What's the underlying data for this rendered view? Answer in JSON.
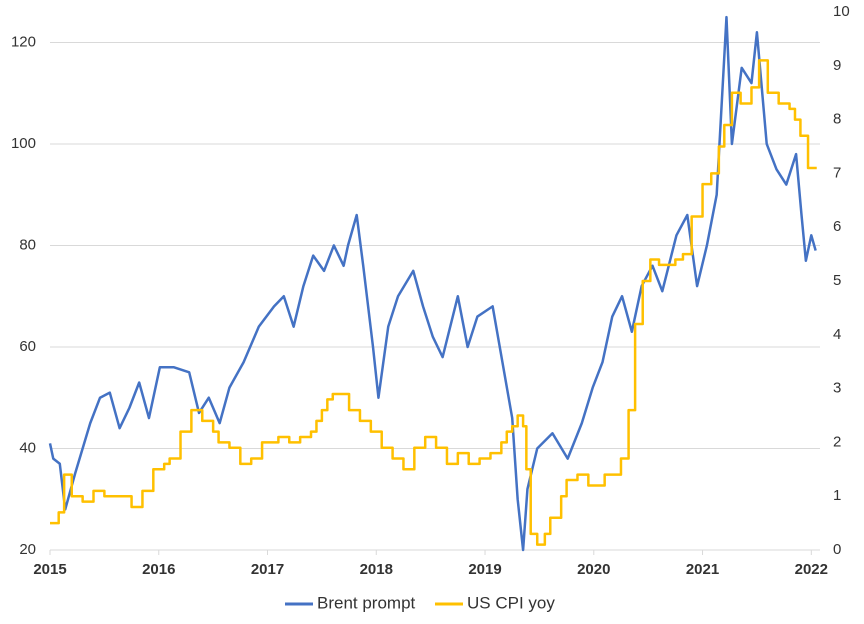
{
  "chart_data": {
    "type": "line",
    "xlim": [
      2015,
      2022.08
    ],
    "xticks": [
      2015,
      2016,
      2017,
      2018,
      2019,
      2020,
      2021,
      2022
    ],
    "ylim": [
      20,
      126
    ],
    "yticks": [
      20,
      40,
      60,
      80,
      100,
      120
    ],
    "y2lim": [
      0,
      10
    ],
    "y2ticks": [
      0,
      1,
      2,
      3,
      4,
      5,
      6,
      7,
      8,
      9,
      10
    ],
    "grid": true,
    "legend": "bottom",
    "series": [
      {
        "name": "Brent prompt",
        "color": "#4472c4",
        "step": false,
        "x": [
          2015.0,
          2015.03,
          2015.09,
          2015.14,
          2015.23,
          2015.37,
          2015.46,
          2015.55,
          2015.64,
          2015.73,
          2015.82,
          2015.91,
          2016.01,
          2016.14,
          2016.28,
          2016.37,
          2016.46,
          2016.56,
          2016.65,
          2016.78,
          2016.92,
          2017.06,
          2017.15,
          2017.24,
          2017.33,
          2017.42,
          2017.52,
          2017.61,
          2017.7,
          2017.74,
          2017.82,
          2017.88,
          2017.97,
          2018.02,
          2018.11,
          2018.2,
          2018.34,
          2018.43,
          2018.52,
          2018.61,
          2018.75,
          2018.84,
          2018.93,
          2019.07,
          2019.16,
          2019.25,
          2019.3,
          2019.35,
          2019.39,
          2019.48,
          2019.62,
          2019.76,
          2019.89,
          2019.99,
          2020.08,
          2020.17,
          2020.26,
          2020.35,
          2020.44,
          2020.54,
          2020.63,
          2020.76,
          2020.86,
          2020.95,
          2021.04,
          2021.13,
          2021.22,
          2021.27,
          2021.36,
          2021.45,
          2021.5,
          2021.59,
          2021.68,
          2021.77,
          2021.86,
          2021.91,
          2021.95,
          2022.0,
          2022.04
        ],
        "values": [
          41,
          38,
          37,
          28,
          35,
          45,
          50,
          51,
          44,
          48,
          53,
          46,
          56,
          56,
          55,
          47,
          50,
          45,
          52,
          57,
          64,
          68,
          70,
          64,
          72,
          78,
          75,
          80,
          76,
          80,
          86,
          76,
          60,
          50,
          64,
          70,
          75,
          68,
          62,
          58,
          70,
          60,
          66,
          68,
          57,
          46,
          30,
          20,
          32,
          40,
          43,
          38,
          45,
          52,
          57,
          66,
          70,
          63,
          72,
          76,
          71,
          82,
          86,
          72,
          80,
          90,
          125,
          100,
          115,
          112,
          122,
          100,
          95,
          92,
          98,
          86,
          77,
          82,
          79
        ]
      },
      {
        "name": "US CPI yoy",
        "color": "#ffc000",
        "axis": "y2",
        "step": true,
        "x": [
          2015.0,
          2015.08,
          2015.13,
          2015.2,
          2015.3,
          2015.4,
          2015.5,
          2015.75,
          2015.85,
          2015.95,
          2016.05,
          2016.1,
          2016.2,
          2016.3,
          2016.4,
          2016.5,
          2016.55,
          2016.65,
          2016.75,
          2016.85,
          2016.95,
          2017.1,
          2017.2,
          2017.3,
          2017.4,
          2017.45,
          2017.5,
          2017.55,
          2017.6,
          2017.75,
          2017.85,
          2017.95,
          2018.05,
          2018.15,
          2018.25,
          2018.35,
          2018.45,
          2018.55,
          2018.65,
          2018.75,
          2018.85,
          2018.95,
          2019.05,
          2019.15,
          2019.2,
          2019.25,
          2019.3,
          2019.35,
          2019.38,
          2019.42,
          2019.48,
          2019.55,
          2019.6,
          2019.7,
          2019.75,
          2019.85,
          2019.95,
          2020.1,
          2020.25,
          2020.32,
          2020.38,
          2020.45,
          2020.52,
          2020.6,
          2020.75,
          2020.82,
          2020.9,
          2021.0,
          2021.08,
          2021.15,
          2021.2,
          2021.27,
          2021.35,
          2021.45,
          2021.52,
          2021.6,
          2021.7,
          2021.8,
          2021.85,
          2021.9,
          2021.97,
          2022.05
        ],
        "values": [
          0.5,
          0.7,
          1.4,
          1.0,
          0.9,
          1.1,
          1.0,
          0.8,
          1.1,
          1.5,
          1.6,
          1.7,
          2.2,
          2.6,
          2.4,
          2.2,
          2.0,
          1.9,
          1.6,
          1.7,
          2.0,
          2.1,
          2.0,
          2.1,
          2.2,
          2.4,
          2.6,
          2.8,
          2.9,
          2.6,
          2.4,
          2.2,
          1.9,
          1.7,
          1.5,
          1.9,
          2.1,
          1.9,
          1.6,
          1.8,
          1.6,
          1.7,
          1.8,
          2.0,
          2.2,
          2.3,
          2.5,
          2.3,
          1.5,
          0.3,
          0.1,
          0.3,
          0.6,
          1.0,
          1.3,
          1.4,
          1.2,
          1.4,
          1.7,
          2.6,
          4.2,
          5.0,
          5.4,
          5.3,
          5.4,
          5.5,
          6.2,
          6.8,
          7.0,
          7.5,
          7.9,
          8.5,
          8.3,
          8.6,
          9.1,
          8.5,
          8.3,
          8.2,
          8.0,
          7.7,
          7.1,
          7.1
        ]
      }
    ]
  }
}
